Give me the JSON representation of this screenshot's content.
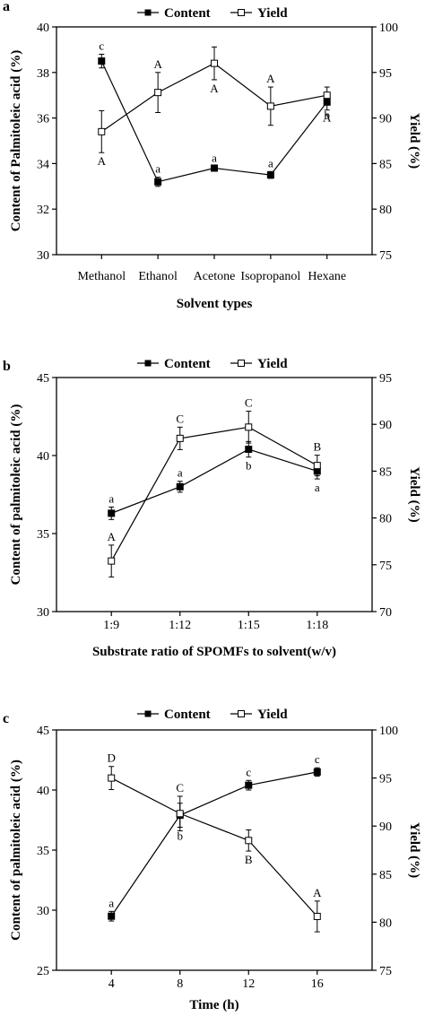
{
  "chart_data": [
    {
      "panel": "a",
      "type": "line",
      "categories": [
        "Methanol",
        "Ethanol",
        "Acetone",
        "Isopropanol",
        "Hexane"
      ],
      "xlabel": "Solvent types",
      "ylabel": "Content of Palmitoleic acid (%)",
      "y2label": "Yield (%)",
      "ylim": [
        30,
        40
      ],
      "y_ticks": [
        30,
        32,
        34,
        36,
        38,
        40
      ],
      "y2lim": [
        75,
        100
      ],
      "y2_ticks": [
        75,
        80,
        85,
        90,
        95,
        100
      ],
      "legend": "top-center",
      "series": [
        {
          "name": "Content",
          "axis": "left",
          "marker": "filled-square",
          "values": [
            38.5,
            33.2,
            33.8,
            33.5,
            36.7
          ],
          "errors": [
            0.3,
            0.2,
            0.08,
            0.15,
            0.35
          ],
          "labels": [
            "c",
            "a",
            "a",
            "a",
            "b"
          ]
        },
        {
          "name": "Yield",
          "axis": "right",
          "marker": "open-square",
          "values": [
            88.5,
            92.8,
            96,
            91.3,
            92.5
          ],
          "errors": [
            2.3,
            2.2,
            1.8,
            2.1,
            0.9
          ],
          "labels": [
            "A",
            "A",
            "A",
            "A",
            "A"
          ]
        }
      ]
    },
    {
      "panel": "b",
      "type": "line",
      "categories": [
        "1:9",
        "1:12",
        "1:15",
        "1:18"
      ],
      "xlabel": "Substrate ratio of SPOMFs to solvent(w/v)",
      "ylabel": "Content of palmitoleic acid (%)",
      "y2label": "Yield (%)",
      "ylim": [
        30,
        45
      ],
      "y_ticks": [
        30,
        35,
        40,
        45
      ],
      "y2lim": [
        70,
        95
      ],
      "y2_ticks": [
        70,
        75,
        80,
        85,
        90,
        95
      ],
      "legend": "top-center",
      "series": [
        {
          "name": "Content",
          "axis": "left",
          "marker": "filled-square",
          "values": [
            36.3,
            38,
            40.4,
            39
          ],
          "errors": [
            0.4,
            0.35,
            0.5,
            0.5
          ],
          "labels": [
            "a",
            "a",
            "b",
            "a"
          ]
        },
        {
          "name": "Yield",
          "axis": "right",
          "marker": "open-square",
          "values": [
            75.4,
            88.5,
            89.7,
            85.6
          ],
          "errors": [
            1.7,
            1.2,
            1.7,
            1.1
          ],
          "labels": [
            "A",
            "C",
            "C",
            "B"
          ]
        }
      ]
    },
    {
      "panel": "c",
      "type": "line",
      "categories": [
        "4",
        "8",
        "12",
        "16"
      ],
      "xlabel": "Time (h)",
      "ylabel": "Content of palmitoleic acid (%)",
      "y2label": "Yield (%)",
      "ylim": [
        25,
        45
      ],
      "y_ticks": [
        25,
        30,
        35,
        40,
        45
      ],
      "y2lim": [
        75,
        100
      ],
      "y2_ticks": [
        75,
        80,
        85,
        90,
        95,
        100
      ],
      "legend": "top-center",
      "series": [
        {
          "name": "Content",
          "axis": "left",
          "marker": "filled-square",
          "values": [
            29.5,
            37.9,
            40.4,
            41.5
          ],
          "errors": [
            0.4,
            1.0,
            0.4,
            0.35
          ],
          "labels": [
            "a",
            "b",
            "c",
            "c"
          ]
        },
        {
          "name": "Yield",
          "axis": "right",
          "marker": "open-square",
          "values": [
            95,
            91.3,
            88.5,
            80.6
          ],
          "errors": [
            1.2,
            1.8,
            1.1,
            1.6
          ],
          "labels": [
            "D",
            "C",
            "B",
            "A"
          ]
        }
      ]
    }
  ]
}
